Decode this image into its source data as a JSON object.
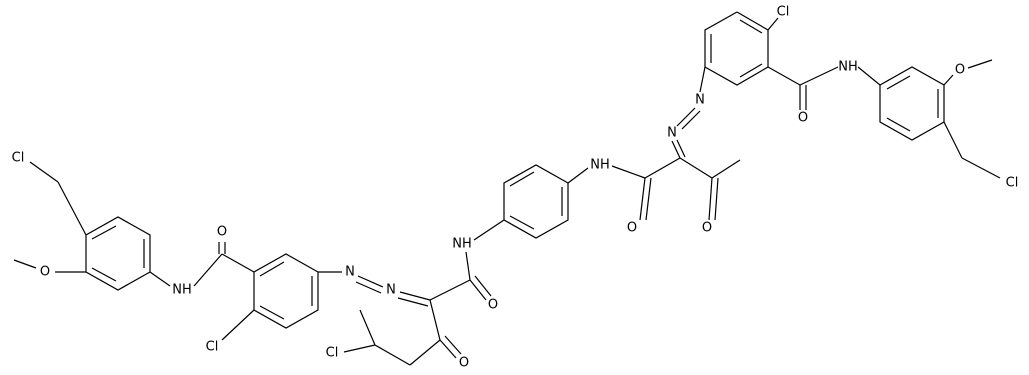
{
  "atoms": [
    "Cl",
    "NH",
    "O",
    "O",
    "Cl",
    "N",
    "N",
    "NH",
    "O",
    "O",
    "Cl",
    "O",
    "NH",
    "O",
    "Cl",
    "N",
    "N",
    "NH",
    "O",
    "O",
    "Cl"
  ]
}
